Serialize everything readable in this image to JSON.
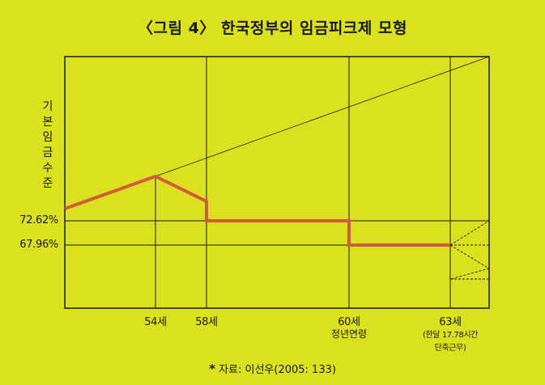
{
  "title": "〈그림 4〉 한국정부의 임금피크제 모형",
  "y_axis_label": "기본임금수준",
  "y_ticks": [
    "72.62%",
    "67.96%"
  ],
  "x_ticks": [
    "54세",
    "58세",
    "60세",
    "63세"
  ],
  "x_subtitles": {
    "retirement": "정년연령",
    "extension_line1": "(한달 17.78시간",
    "extension_line2": "단축근무)"
  },
  "source": {
    "marker": "*",
    "text": "자료: 이선우(2005: 133)"
  },
  "colors": {
    "background": "#dbe01f",
    "wage_line": "#d45a3c",
    "frame": "#1a1a1a"
  }
}
